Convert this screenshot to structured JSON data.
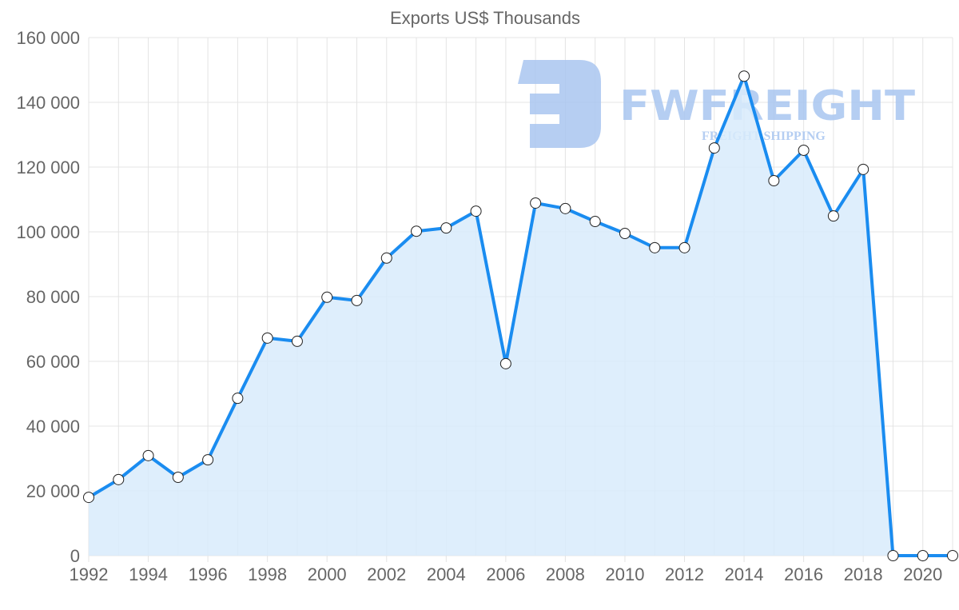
{
  "chart_data": {
    "type": "line",
    "title": "Exports US$ Thousands",
    "xlabel": "",
    "ylabel": "",
    "x": [
      1992,
      1993,
      1994,
      1995,
      1996,
      1997,
      1998,
      1999,
      2000,
      2001,
      2002,
      2003,
      2004,
      2005,
      2006,
      2007,
      2008,
      2009,
      2010,
      2011,
      2012,
      2013,
      2014,
      2015,
      2016,
      2017,
      2018,
      2019,
      2020,
      2021
    ],
    "series": [
      {
        "name": "Exports US$ Thousands",
        "values": [
          18000,
          23500,
          30900,
          24200,
          29600,
          48600,
          67200,
          66200,
          79800,
          78800,
          91900,
          100200,
          101200,
          106400,
          59300,
          108900,
          107200,
          103200,
          99500,
          95100,
          95100,
          125900,
          148100,
          115800,
          125200,
          104900,
          119300,
          0,
          0,
          0
        ],
        "color": "#1a8cf0",
        "fill": "#d8ebfb"
      }
    ],
    "ylim": [
      0,
      160000
    ],
    "xlim": [
      1992,
      2021
    ],
    "yticks": [
      "0",
      "20 000",
      "40 000",
      "60 000",
      "80 000",
      "100 000",
      "120 000",
      "140 000",
      "160 000"
    ],
    "xticks": [
      "1992",
      "1994",
      "1996",
      "1998",
      "2000",
      "2002",
      "2004",
      "2006",
      "2008",
      "2010",
      "2012",
      "2014",
      "2016",
      "2018",
      "2020"
    ],
    "grid": true,
    "legend": "none"
  },
  "watermark": {
    "brand": "FWFREIGHT",
    "tagline": "FREIGHT SHIPPING",
    "color": "#a9c6f0"
  }
}
